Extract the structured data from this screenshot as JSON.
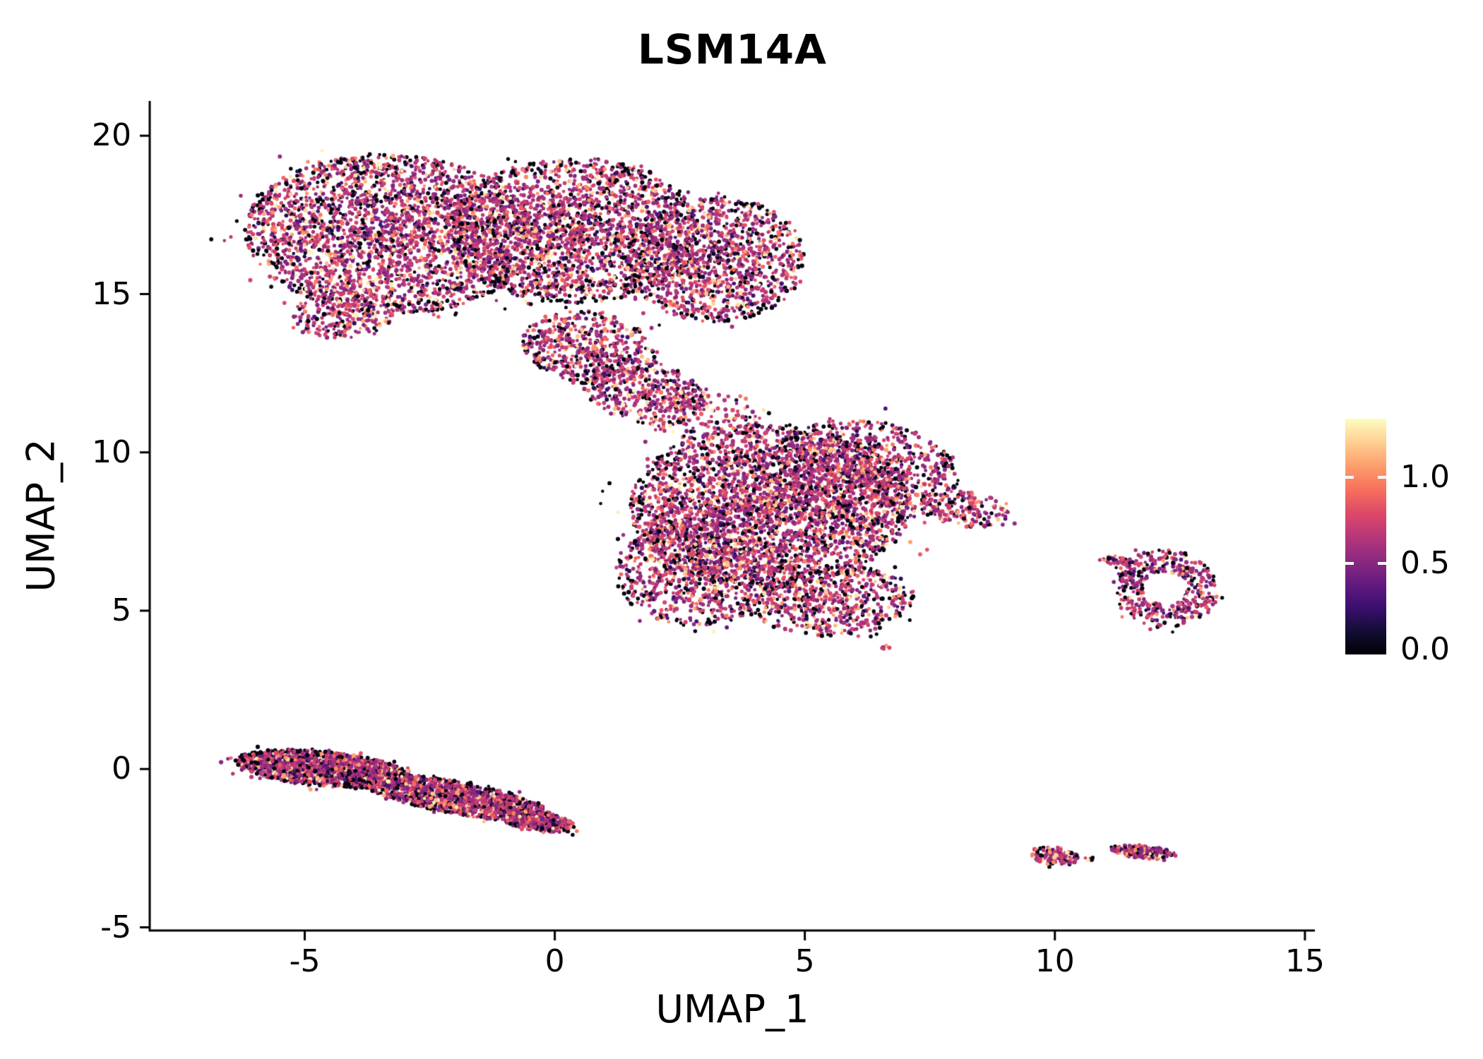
{
  "title": "LSM14A",
  "figure": {
    "background_color": "#ffffff",
    "axis_color": "#000000",
    "text_color": "#000000"
  },
  "axes": {
    "x": {
      "label": "UMAP_1",
      "ticks": [
        {
          "value": -5,
          "label": "-5"
        },
        {
          "value": 0,
          "label": "0"
        },
        {
          "value": 5,
          "label": "5"
        },
        {
          "value": 10,
          "label": "10"
        },
        {
          "value": 15,
          "label": "15"
        }
      ]
    },
    "y": {
      "label": "UMAP_2",
      "ticks": [
        {
          "value": -5,
          "label": "-5"
        },
        {
          "value": 0,
          "label": "0"
        },
        {
          "value": 5,
          "label": "5"
        },
        {
          "value": 10,
          "label": "10"
        },
        {
          "value": 15,
          "label": "15"
        },
        {
          "value": 20,
          "label": "20"
        }
      ]
    }
  },
  "colorbar": {
    "value_range": [
      -0.03,
      1.34
    ],
    "ticks": [
      {
        "value": 0.0,
        "label": "0.0"
      },
      {
        "value": 0.5,
        "label": "0.5"
      },
      {
        "value": 1.0,
        "label": "1.0"
      }
    ],
    "colormap": [
      {
        "t": 0.0,
        "color": "#000004"
      },
      {
        "t": 0.1,
        "color": "#140e36"
      },
      {
        "t": 0.2,
        "color": "#3b0f70"
      },
      {
        "t": 0.3,
        "color": "#641a80"
      },
      {
        "t": 0.4,
        "color": "#8c2981"
      },
      {
        "t": 0.5,
        "color": "#b73779"
      },
      {
        "t": 0.6,
        "color": "#de4968"
      },
      {
        "t": 0.7,
        "color": "#f7705c"
      },
      {
        "t": 0.8,
        "color": "#fe9f6d"
      },
      {
        "t": 0.9,
        "color": "#fecf92"
      },
      {
        "t": 1.0,
        "color": "#fcfdbf"
      }
    ]
  },
  "chart_data": {
    "type": "scatter",
    "title": "LSM14A",
    "xlabel": "UMAP_1",
    "ylabel": "UMAP_2",
    "xlim": [
      -8.1,
      15.2
    ],
    "ylim": [
      -5.1,
      21.1
    ],
    "grid": false,
    "legend_position": "right-colorbar",
    "point_radius_px": 2.7,
    "seed": 42,
    "value_distribution": [
      {
        "p": 0.14,
        "v": [
          0.0,
          0.0
        ]
      },
      {
        "p": 0.08,
        "v": [
          0.08,
          0.4
        ]
      },
      {
        "p": 0.56,
        "v": [
          0.45,
          0.78
        ]
      },
      {
        "p": 0.12,
        "v": [
          0.78,
          1.0
        ]
      },
      {
        "p": 0.1,
        "v": [
          1.0,
          1.32
        ]
      }
    ],
    "clusters": [
      {
        "name": "upper-left-lobe-west",
        "cx": -3.3,
        "cy": 16.9,
        "rx": 2.9,
        "ry": 2.5,
        "angle": -8,
        "n": 2600
      },
      {
        "name": "upper-left-lobe-mid",
        "cx": 0.4,
        "cy": 17.0,
        "rx": 2.5,
        "ry": 2.3,
        "angle": 0,
        "n": 2100
      },
      {
        "name": "upper-left-lobe-east",
        "cx": 3.2,
        "cy": 16.1,
        "rx": 1.8,
        "ry": 2.0,
        "angle": 0,
        "n": 1200
      },
      {
        "name": "upper-left-tail",
        "cx": -4.2,
        "cy": 14.4,
        "rx": 1.1,
        "ry": 0.8,
        "angle": 20,
        "n": 260
      },
      {
        "name": "bridge-upper",
        "cx": 0.7,
        "cy": 13.3,
        "rx": 1.4,
        "ry": 1.1,
        "angle": -25,
        "n": 520
      },
      {
        "name": "bridge-lower",
        "cx": 1.8,
        "cy": 11.9,
        "rx": 1.3,
        "ry": 0.95,
        "angle": -30,
        "n": 380
      },
      {
        "name": "bridge-scatter",
        "cx": 3.0,
        "cy": 11.2,
        "rx": 1.2,
        "ry": 0.8,
        "angle": 0,
        "n": 140
      },
      {
        "name": "center-main",
        "cx": 4.3,
        "cy": 8.3,
        "rx": 2.8,
        "ry": 2.6,
        "angle": 0,
        "n": 3000
      },
      {
        "name": "center-upper-right",
        "cx": 6.2,
        "cy": 9.4,
        "rx": 1.9,
        "ry": 1.6,
        "angle": -20,
        "n": 900
      },
      {
        "name": "center-lower-left",
        "cx": 2.9,
        "cy": 6.2,
        "rx": 1.7,
        "ry": 1.7,
        "angle": 0,
        "n": 800
      },
      {
        "name": "center-bottom",
        "cx": 5.6,
        "cy": 5.3,
        "rx": 1.6,
        "ry": 1.1,
        "angle": 10,
        "n": 550
      },
      {
        "name": "center-right-tip",
        "cx": 8.2,
        "cy": 8.2,
        "rx": 0.9,
        "ry": 0.55,
        "angle": -15,
        "n": 170
      },
      {
        "name": "center-outlier",
        "cx": 6.6,
        "cy": 3.8,
        "rx": 0.12,
        "ry": 0.1,
        "angle": 0,
        "n": 5
      },
      {
        "name": "right-ring",
        "cx": 12.2,
        "cy": 5.7,
        "rx": 1.05,
        "ry": 1.25,
        "angle": 10,
        "n": 430,
        "shape": "ring",
        "inner": 0.42
      },
      {
        "name": "right-ring-streak",
        "cx": 11.2,
        "cy": 6.6,
        "rx": 0.35,
        "ry": 0.13,
        "angle": -10,
        "n": 35
      },
      {
        "name": "band-west",
        "cx": -4.6,
        "cy": 0.0,
        "rx": 1.8,
        "ry": 0.55,
        "angle": -9,
        "n": 1500
      },
      {
        "name": "band-east",
        "cx": -2.0,
        "cy": -0.9,
        "rx": 2.0,
        "ry": 0.5,
        "angle": -17,
        "n": 1300
      },
      {
        "name": "band-tip",
        "cx": -0.35,
        "cy": -1.65,
        "rx": 0.8,
        "ry": 0.3,
        "angle": -15,
        "n": 300
      },
      {
        "name": "bottom-right-blob-west",
        "cx": 10.0,
        "cy": -2.75,
        "rx": 0.5,
        "ry": 0.28,
        "angle": -10,
        "n": 130
      },
      {
        "name": "bottom-right-dot",
        "cx": 10.7,
        "cy": -2.85,
        "rx": 0.12,
        "ry": 0.07,
        "angle": 0,
        "n": 8
      },
      {
        "name": "bottom-right-blob-east",
        "cx": 11.75,
        "cy": -2.62,
        "rx": 0.68,
        "ry": 0.2,
        "angle": -8,
        "n": 160
      }
    ]
  }
}
